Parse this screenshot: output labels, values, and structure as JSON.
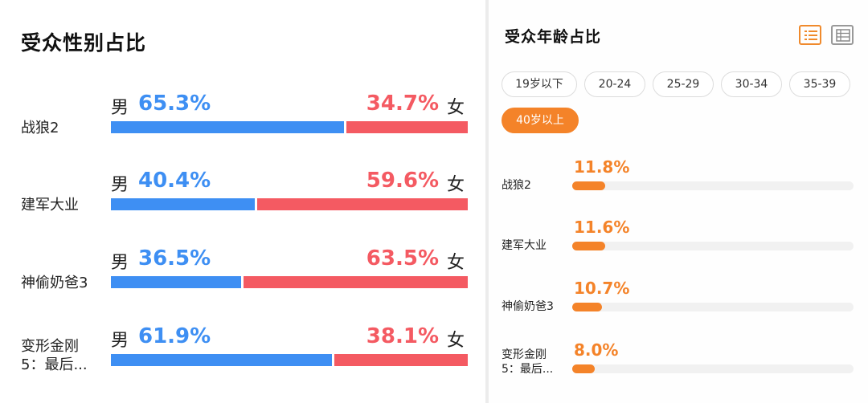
{
  "gender": {
    "title": "受众性别占比",
    "male_label": "男",
    "female_label": "女",
    "colors": {
      "male": "#3e8ff3",
      "female": "#f45a62"
    },
    "rows": [
      {
        "name": "战狼2",
        "male": "65.3%",
        "female": "34.7%",
        "male_value": 65.3
      },
      {
        "name": "建军大业",
        "male": "40.4%",
        "female": "59.6%",
        "male_value": 40.4
      },
      {
        "name": "神偷奶爸3",
        "male": "36.5%",
        "female": "63.5%",
        "male_value": 36.5
      },
      {
        "name": "变形金刚\n5：最后...",
        "male": "61.9%",
        "female": "38.1%",
        "male_value": 61.9
      }
    ]
  },
  "age": {
    "title": "受众年龄占比",
    "view_icons": [
      "list-view-icon",
      "table-view-icon"
    ],
    "active_view": "list",
    "chips": [
      "19岁以下",
      "20-24",
      "25-29",
      "30-34",
      "35-39",
      "40岁以上"
    ],
    "selected_chip": "40岁以上",
    "accent": "#f48329",
    "rows": [
      {
        "name": "战狼2",
        "value_label": "11.8%",
        "value": 11.8
      },
      {
        "name": "建军大业",
        "value_label": "11.6%",
        "value": 11.6
      },
      {
        "name": "神偷奶爸3",
        "value_label": "10.7%",
        "value": 10.7
      },
      {
        "name": "变形金刚\n5：最后...",
        "value_label": "8.0%",
        "value": 8.0
      }
    ]
  },
  "chart_data": [
    {
      "type": "bar",
      "stacked": true,
      "orientation": "horizontal",
      "title": "受众性别占比",
      "categories": [
        "战狼2",
        "建军大业",
        "神偷奶爸3",
        "变形金刚5：最后..."
      ],
      "series": [
        {
          "name": "男",
          "values": [
            65.3,
            40.4,
            36.5,
            61.9
          ]
        },
        {
          "name": "女",
          "values": [
            34.7,
            59.6,
            63.5,
            38.1
          ]
        }
      ],
      "unit": "%"
    },
    {
      "type": "bar",
      "orientation": "horizontal",
      "title": "受众年龄占比",
      "filter": "40岁以上",
      "categories": [
        "战狼2",
        "建军大业",
        "神偷奶爸3",
        "变形金刚5：最后..."
      ],
      "values": [
        11.8,
        11.6,
        10.7,
        8.0
      ],
      "unit": "%"
    }
  ]
}
